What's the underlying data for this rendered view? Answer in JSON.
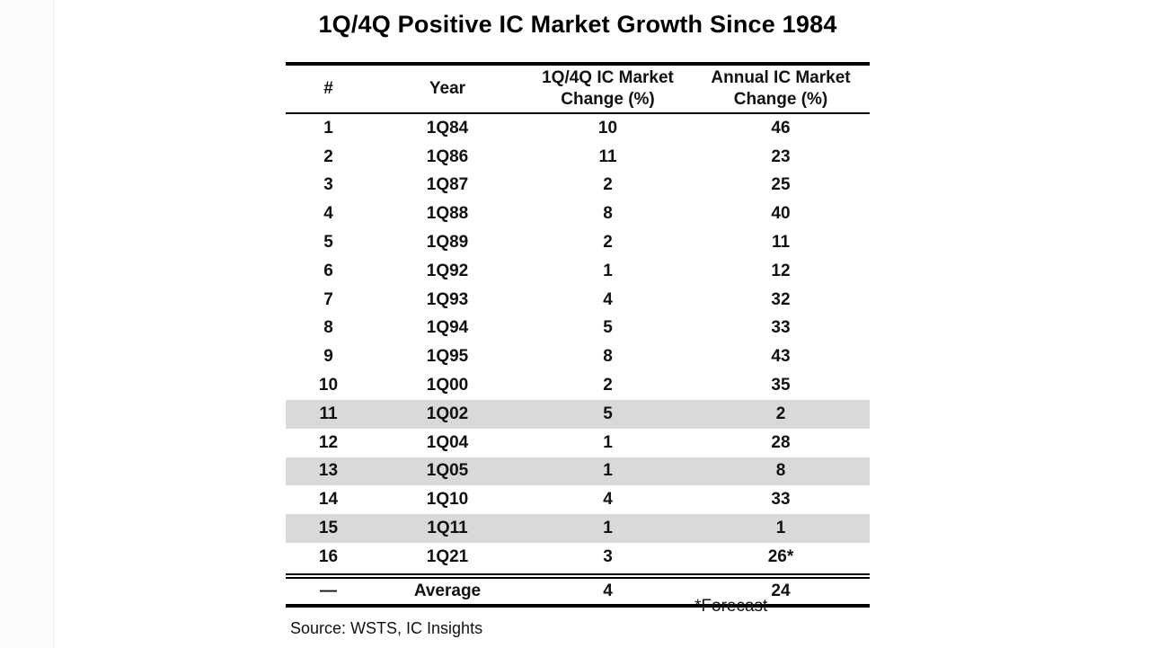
{
  "title": "1Q/4Q Positive IC Market Growth Since 1984",
  "chart_data": {
    "type": "table",
    "title": "1Q/4Q Positive IC Market Growth Since 1984",
    "columns": [
      "#",
      "Year",
      "1Q/4Q IC Market Change (%)",
      "Annual IC Market Change (%)"
    ],
    "header": {
      "num": "#",
      "year": "Year",
      "q_change_line1": "1Q/4Q IC Market",
      "q_change_line2": "Change (%)",
      "annual_line1": "Annual IC Market",
      "annual_line2": "Change (%)"
    },
    "rows": [
      {
        "num": "1",
        "year": "1Q84",
        "q_change": "10",
        "annual": "46",
        "shaded": false
      },
      {
        "num": "2",
        "year": "1Q86",
        "q_change": "11",
        "annual": "23",
        "shaded": false
      },
      {
        "num": "3",
        "year": "1Q87",
        "q_change": "2",
        "annual": "25",
        "shaded": false
      },
      {
        "num": "4",
        "year": "1Q88",
        "q_change": "8",
        "annual": "40",
        "shaded": false
      },
      {
        "num": "5",
        "year": "1Q89",
        "q_change": "2",
        "annual": "11",
        "shaded": false
      },
      {
        "num": "6",
        "year": "1Q92",
        "q_change": "1",
        "annual": "12",
        "shaded": false
      },
      {
        "num": "7",
        "year": "1Q93",
        "q_change": "4",
        "annual": "32",
        "shaded": false
      },
      {
        "num": "8",
        "year": "1Q94",
        "q_change": "5",
        "annual": "33",
        "shaded": false
      },
      {
        "num": "9",
        "year": "1Q95",
        "q_change": "8",
        "annual": "43",
        "shaded": false
      },
      {
        "num": "10",
        "year": "1Q00",
        "q_change": "2",
        "annual": "35",
        "shaded": false
      },
      {
        "num": "11",
        "year": "1Q02",
        "q_change": "5",
        "annual": "2",
        "shaded": true
      },
      {
        "num": "12",
        "year": "1Q04",
        "q_change": "1",
        "annual": "28",
        "shaded": false
      },
      {
        "num": "13",
        "year": "1Q05",
        "q_change": "1",
        "annual": "8",
        "shaded": true
      },
      {
        "num": "14",
        "year": "1Q10",
        "q_change": "4",
        "annual": "33",
        "shaded": false
      },
      {
        "num": "15",
        "year": "1Q11",
        "q_change": "1",
        "annual": "1",
        "shaded": true
      },
      {
        "num": "16",
        "year": "1Q21",
        "q_change": "3",
        "annual": "26*",
        "shaded": false
      }
    ],
    "average": {
      "num": "—",
      "year": "Average",
      "q_change": "4",
      "annual": "24"
    },
    "footnote": "*Forecast",
    "source": "Source: WSTS, IC Insights",
    "colors": {
      "shade": "#d9d9d9",
      "rule": "#000000"
    }
  }
}
